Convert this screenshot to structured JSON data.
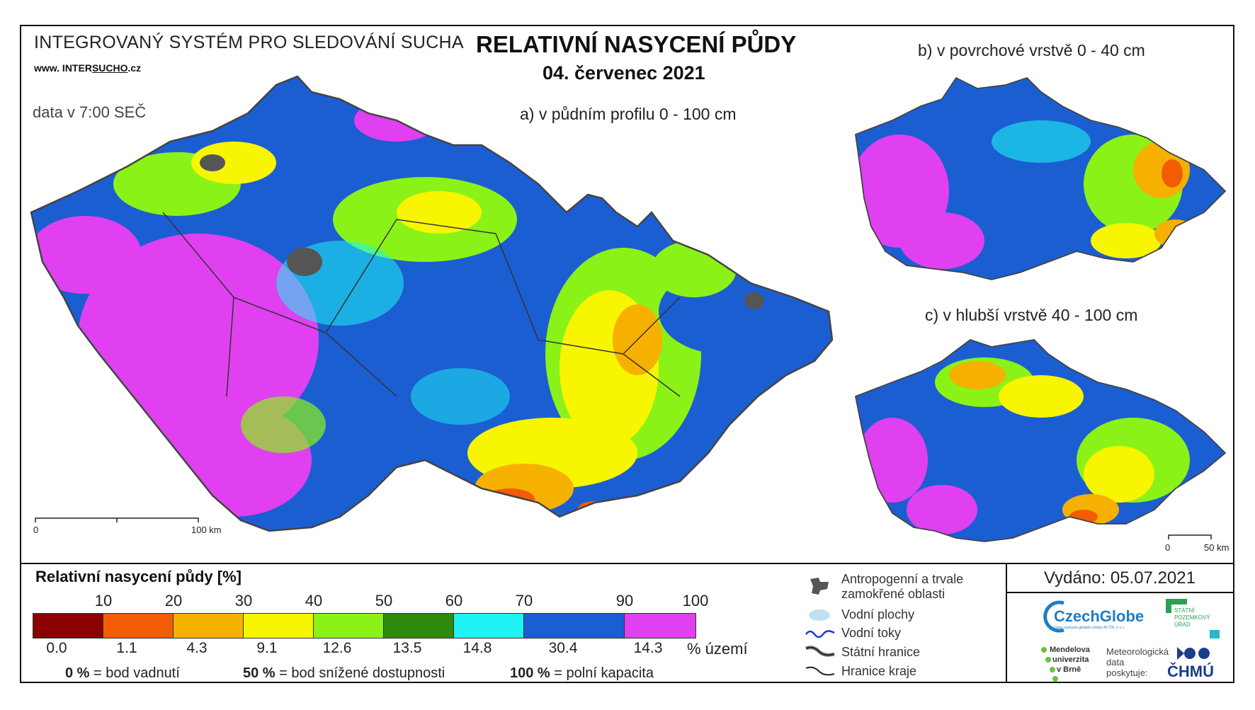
{
  "header": {
    "system_title": "INTEGROVANÝ SYSTÉM PRO SLEDOVÁNÍ SUCHA",
    "website_prefix": "www. INTER",
    "website_mid": "SUCHO",
    "website_suffix": ".cz",
    "data_time": "data v 7:00 SEČ",
    "main_title": "RELATIVNÍ NASYCENÍ PŮDY",
    "date": "04. červenec 2021"
  },
  "maps": {
    "a_label": "a) v půdním profilu 0 - 100 cm",
    "b_label": "b) v povrchové vrstvě 0 - 40 cm",
    "c_label": "c) v hlubší vrstvě 40 - 100 cm",
    "scale_main": [
      "0",
      "100 km"
    ],
    "scale_small": [
      "0",
      "50 km"
    ]
  },
  "legend": {
    "title": "Relativní nasycení půdy [%]",
    "ticks": [
      "10",
      "20",
      "30",
      "40",
      "50",
      "60",
      "70",
      "90",
      "100"
    ],
    "colors": [
      "#8b0000",
      "#f25c05",
      "#f6b100",
      "#f7f500",
      "#8bf218",
      "#2d8a0a",
      "#1ef2f2",
      "#1b5ed2",
      "#e040f0"
    ],
    "percent_values": [
      "0.0",
      "1.1",
      "4.3",
      "9.1",
      "12.6",
      "13.5",
      "14.8",
      "30.4",
      "14.3"
    ],
    "percent_unit": "% území",
    "definitions": [
      {
        "value": "0 %",
        "text": "= bod vadnutí"
      },
      {
        "value": "50 %",
        "text": "= bod snížené dostupnosti"
      },
      {
        "value": "100 %",
        "text": "= polní kapacita"
      }
    ]
  },
  "symbols": {
    "anthropogenic": "Antropogenní a trvale zamokřené oblasti",
    "water_bodies": "Vodní plochy",
    "streams": "Vodní toky",
    "state_border": "Státní hranice",
    "region_border": "Hranice kraje"
  },
  "footer": {
    "issued": "Vydáno: 05.07.2021",
    "czechglobe": "CzechGlobe",
    "czechglobe_sub": "Ústav výzkumu globální změny AV ČR, v. v. i.",
    "spu": [
      "STÁTNÍ",
      "POZEMKOVÝ",
      "ÚŘAD"
    ],
    "mendel": [
      "Mendelova",
      "univerzita",
      "v Brně"
    ],
    "meteo": [
      "Meteorologická",
      "data",
      "poskytuje:"
    ],
    "chmu": "ČHMÚ"
  },
  "colors": {
    "purple": "#e040f0",
    "blue": "#1b5ed2",
    "cyan": "#1ef2f2",
    "green": "#8bf218",
    "yellow": "#f7f500",
    "orange": "#f6b100",
    "red": "#f25c05",
    "czechglobe_blue": "#1f7ec2",
    "spu_green": "#2aa050",
    "chmu_blue": "#1a3e8a"
  }
}
